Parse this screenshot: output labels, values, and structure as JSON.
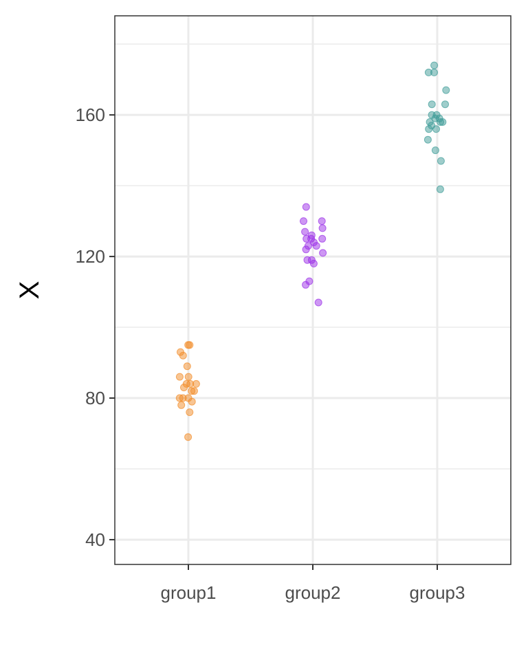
{
  "chart_data": {
    "type": "scatter",
    "subtype": "jitter-strip",
    "title": "",
    "xlabel": "",
    "ylabel": "X",
    "categories": [
      "group1",
      "group2",
      "group3"
    ],
    "ylim": [
      33,
      188
    ],
    "y_ticks": [
      40,
      80,
      120,
      160
    ],
    "grid": true,
    "legend": "none",
    "series": [
      {
        "category": "group1",
        "color": "#F28C28",
        "values": [
          95,
          95,
          93,
          92,
          89,
          86,
          86,
          84,
          84,
          84,
          83,
          82,
          82,
          80,
          80,
          80,
          79,
          78,
          76,
          69
        ]
      },
      {
        "category": "group2",
        "color": "#9B30E8",
        "values": [
          134,
          130,
          130,
          128,
          127,
          126,
          125,
          125,
          125,
          124,
          123,
          123,
          122,
          121,
          119,
          119,
          118,
          113,
          112,
          107
        ]
      },
      {
        "category": "group3",
        "color": "#3F9C98",
        "values": [
          174,
          172,
          172,
          167,
          163,
          163,
          160,
          160,
          159,
          159,
          158,
          158,
          158,
          157,
          156,
          156,
          153,
          150,
          147,
          139
        ]
      }
    ]
  }
}
